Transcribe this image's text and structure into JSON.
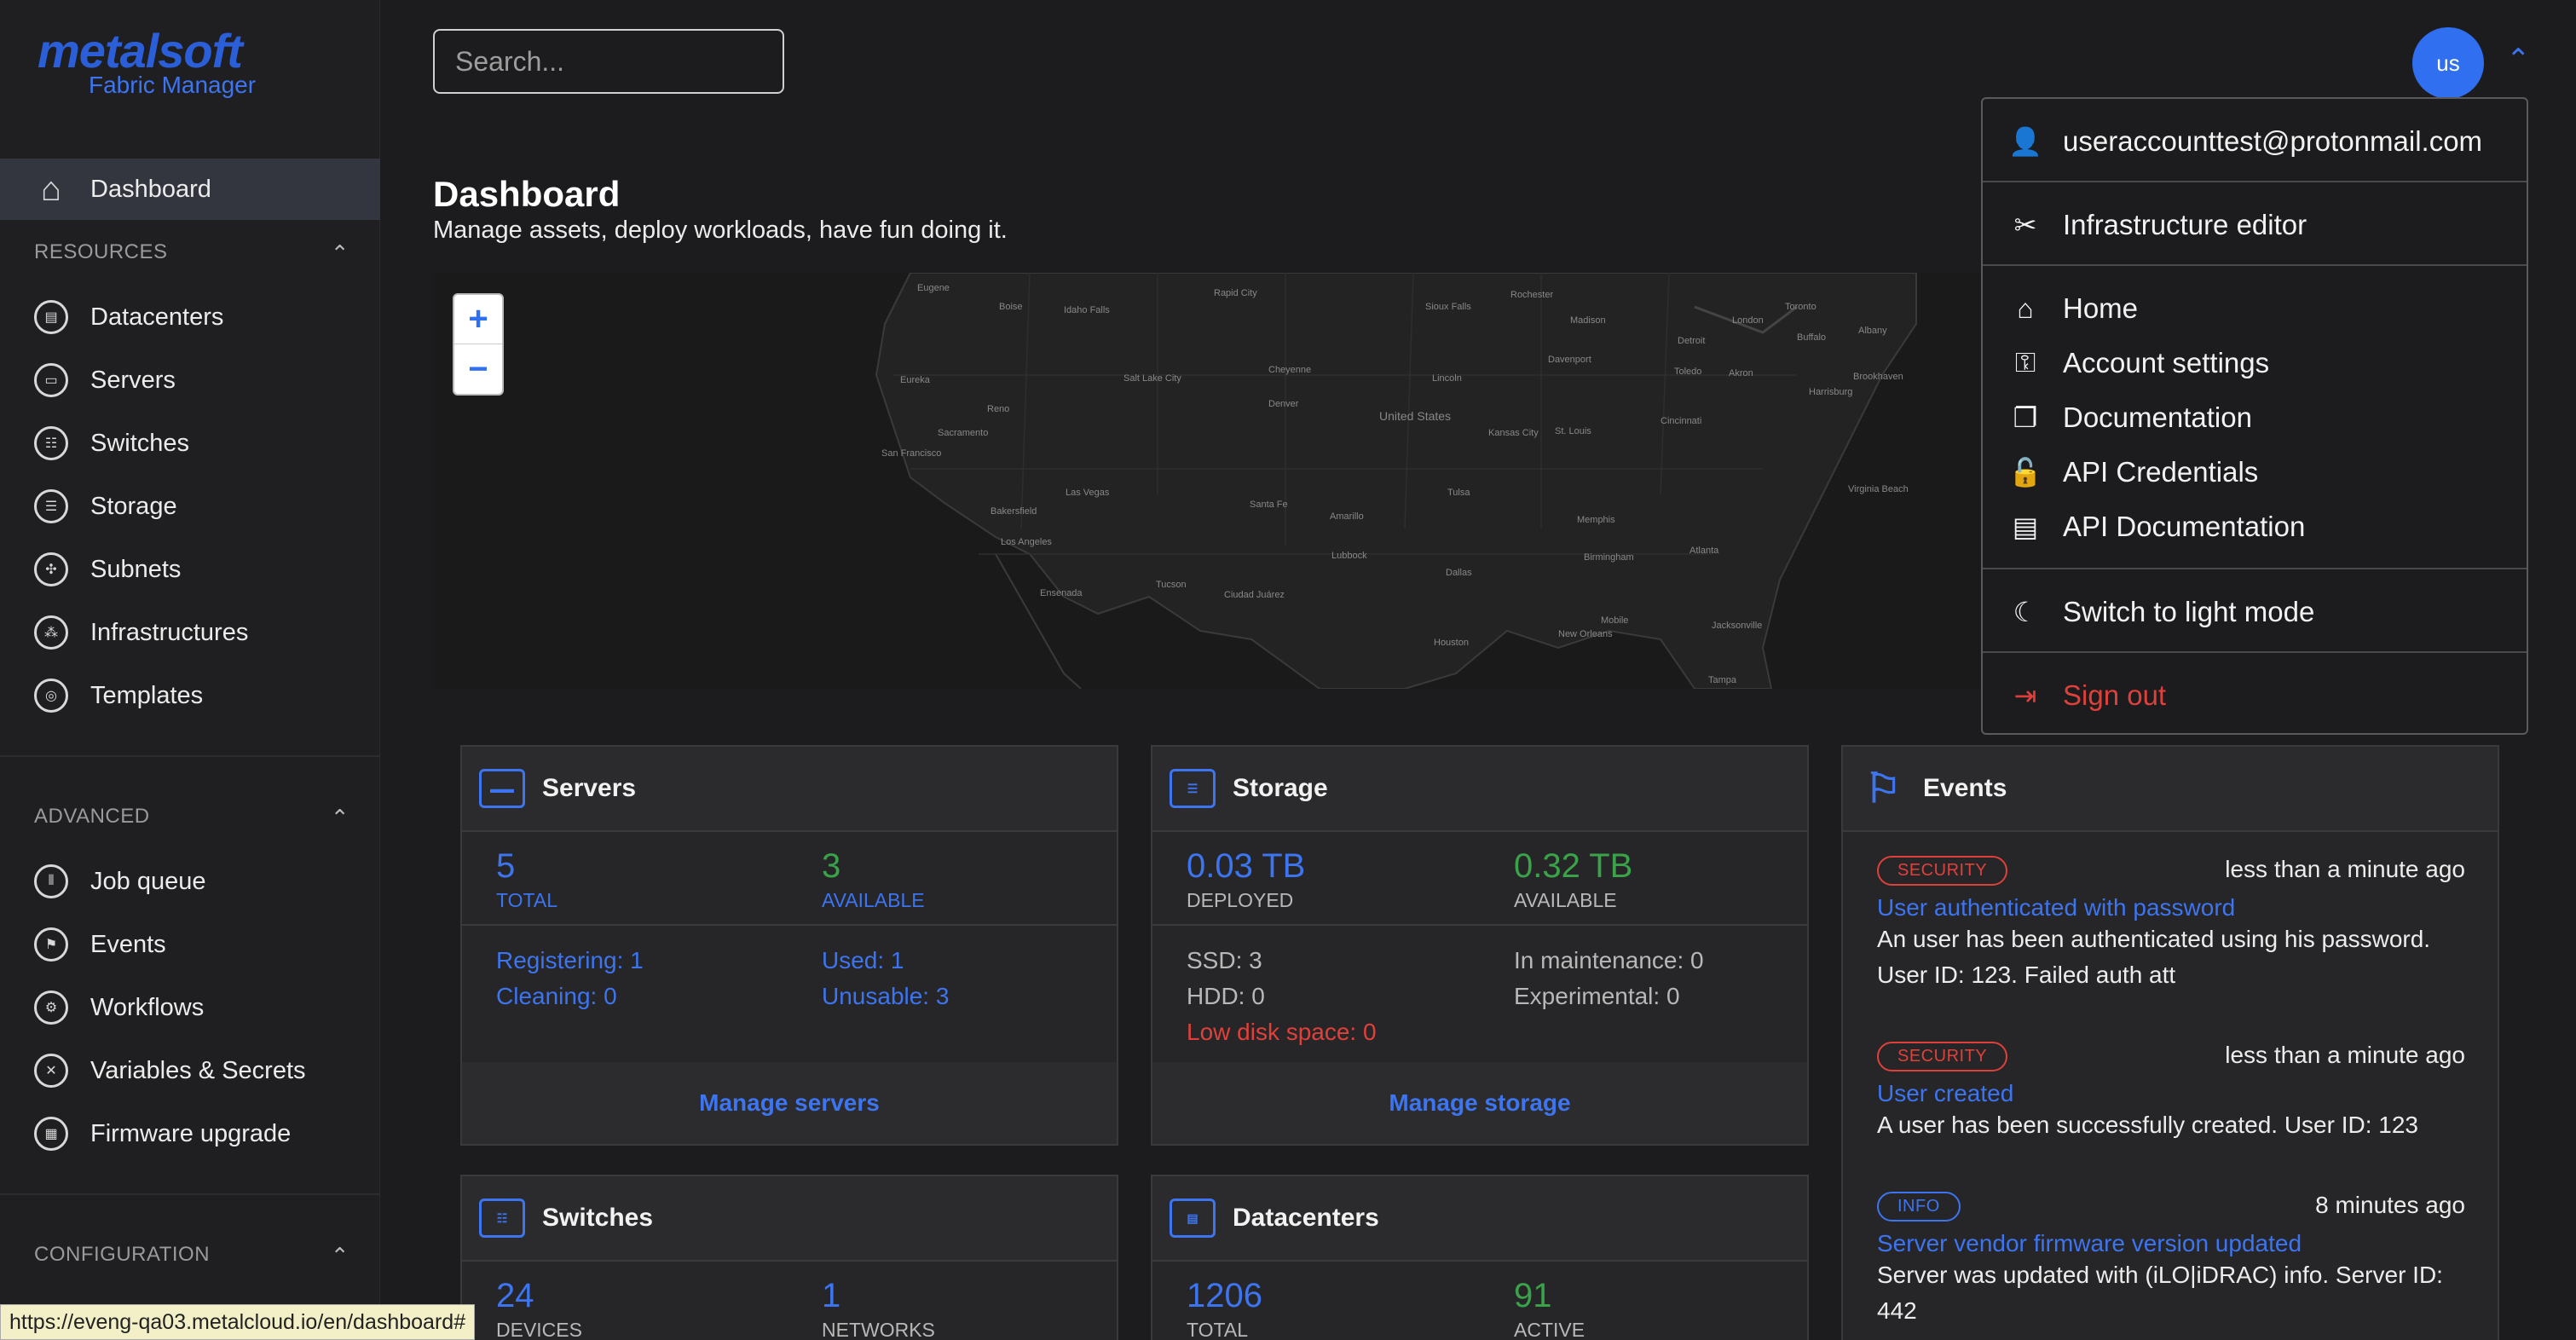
{
  "brand": {
    "name": "metalsoft",
    "product": "Fabric Manager",
    "accent": "#3d74f0"
  },
  "sidebar": {
    "dashboard": "Dashboard",
    "resources_head": "RESOURCES",
    "resources": [
      "Datacenters",
      "Servers",
      "Switches",
      "Storage",
      "Subnets",
      "Infrastructures",
      "Templates"
    ],
    "advanced_head": "ADVANCED",
    "advanced": [
      "Job queue",
      "Events",
      "Workflows",
      "Variables & Secrets",
      "Firmware upgrade"
    ],
    "configuration_head": "CONFIGURATION"
  },
  "search": {
    "placeholder": "Search..."
  },
  "user": {
    "initials": "us"
  },
  "page": {
    "title": "Dashboard",
    "subtitle": "Manage assets, deploy workloads, have fun doing it."
  },
  "map": {
    "zoom_in": "+",
    "zoom_out": "−",
    "labels": [
      "Eugene",
      "Boise",
      "Idaho Falls",
      "Rapid City",
      "Sioux Falls",
      "Rochester",
      "Madison",
      "Toronto",
      "Detroit",
      "London",
      "Buffalo",
      "Albany",
      "Eureka",
      "Salt Lake City",
      "Cheyenne",
      "Lincoln",
      "Davenport",
      "Toledo",
      "Akron",
      "Harrisburg",
      "Brookhaven",
      "Reno",
      "Denver",
      "United States",
      "Kansas City",
      "St. Louis",
      "Cincinnati",
      "Sacramento",
      "San Francisco",
      "Las Vegas",
      "Santa Fe",
      "Amarillo",
      "Tulsa",
      "Memphis",
      "Virginia Beach",
      "Bakersfield",
      "Los Angeles",
      "Lubbock",
      "Birmingham",
      "Atlanta",
      "Ensenada",
      "Tucson",
      "Ciudad Juárez",
      "Dallas",
      "Houston",
      "New Orleans",
      "Mobile",
      "Jacksonville",
      "Tampa"
    ]
  },
  "cards": {
    "servers": {
      "title": "Servers",
      "total": "5",
      "total_label": "TOTAL",
      "available": "3",
      "available_label": "AVAILABLE",
      "registering": "Registering: 1",
      "cleaning": "Cleaning: 0",
      "used": "Used: 1",
      "unusable": "Unusable: 3",
      "manage": "Manage servers"
    },
    "storage": {
      "title": "Storage",
      "deployed": "0.03 TB",
      "deployed_label": "DEPLOYED",
      "available": "0.32 TB",
      "available_label": "AVAILABLE",
      "ssd": "SSD: 3",
      "hdd": "HDD: 0",
      "low_disk": "Low disk space: 0",
      "maintenance": "In maintenance: 0",
      "experimental": "Experimental: 0",
      "manage": "Manage storage"
    },
    "switches": {
      "title": "Switches",
      "devices": "24",
      "devices_label": "DEVICES",
      "networks": "1",
      "networks_label": "NETWORKS"
    },
    "datacenters": {
      "title": "Datacenters",
      "total": "1206",
      "total_label": "TOTAL",
      "active": "91",
      "active_label": "ACTIVE"
    },
    "events": {
      "title": "Events",
      "items": [
        {
          "badge": "SECURITY",
          "time": "less than a minute ago",
          "title": "User authenticated with password",
          "body1": "An user has been authenticated using his password.",
          "body2": "User ID: 123. Failed auth att"
        },
        {
          "badge": "SECURITY",
          "time": "less than a minute ago",
          "title": "User created",
          "body1": "A user has been successfully created. User ID: 123"
        },
        {
          "badge": "INFO",
          "time": "8 minutes ago",
          "title": "Server vendor firmware version updated",
          "body1": "Server was updated with (iLO|iDRAC) info. Server ID:",
          "body2": "442"
        }
      ]
    }
  },
  "dropdown": {
    "email": "useraccounttest@protonmail.com",
    "infra_editor": "Infrastructure editor",
    "home": "Home",
    "account_settings": "Account settings",
    "documentation": "Documentation",
    "api_credentials": "API Credentials",
    "api_documentation": "API Documentation",
    "light_mode": "Switch to light mode",
    "sign_out": "Sign out"
  },
  "status_url": "https://eveng-qa03.metalcloud.io/en/dashboard#"
}
